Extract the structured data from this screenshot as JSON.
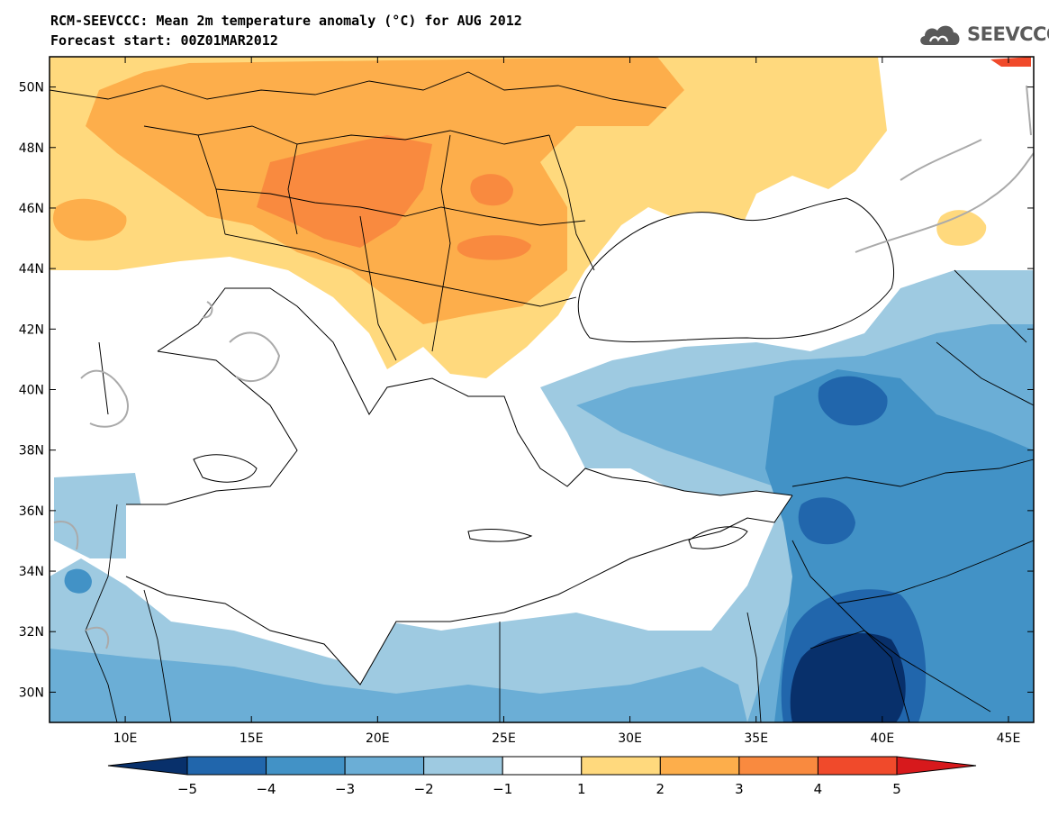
{
  "header": {
    "title": "RCM-SEEVCCC: Mean 2m temperature anomaly (°C) for AUG 2012",
    "subtitle": "Forecast start: 00Z01MAR2012"
  },
  "logo": {
    "icon": "cloud-icon",
    "text": "SEEVCCC",
    "color": "#5a5a5a"
  },
  "chart_data": {
    "type": "heatmap",
    "x_ticks": [
      "10E",
      "15E",
      "20E",
      "25E",
      "30E",
      "35E",
      "40E",
      "45E"
    ],
    "x_values": [
      10,
      15,
      20,
      25,
      30,
      35,
      40,
      45
    ],
    "y_ticks": [
      "50N",
      "48N",
      "46N",
      "44N",
      "42N",
      "40N",
      "38N",
      "36N",
      "34N",
      "32N",
      "30N"
    ],
    "y_values": [
      50,
      48,
      46,
      44,
      42,
      40,
      38,
      36,
      34,
      32,
      30
    ],
    "xlim": [
      7,
      46
    ],
    "ylim": [
      29,
      51
    ],
    "colorbar": {
      "labels": [
        "−5",
        "−4",
        "−3",
        "−2",
        "−1",
        "1",
        "2",
        "3",
        "4",
        "5"
      ],
      "levels": [
        -5,
        -4,
        -3,
        -2,
        -1,
        1,
        2,
        3,
        4,
        5
      ],
      "colors": [
        "#08306b",
        "#2166ac",
        "#4292c6",
        "#6baed6",
        "#9ecae1",
        "#ffffff",
        "#ffd97d",
        "#fdae4b",
        "#f98a3f",
        "#f04a2b",
        "#d7191c"
      ]
    }
  }
}
